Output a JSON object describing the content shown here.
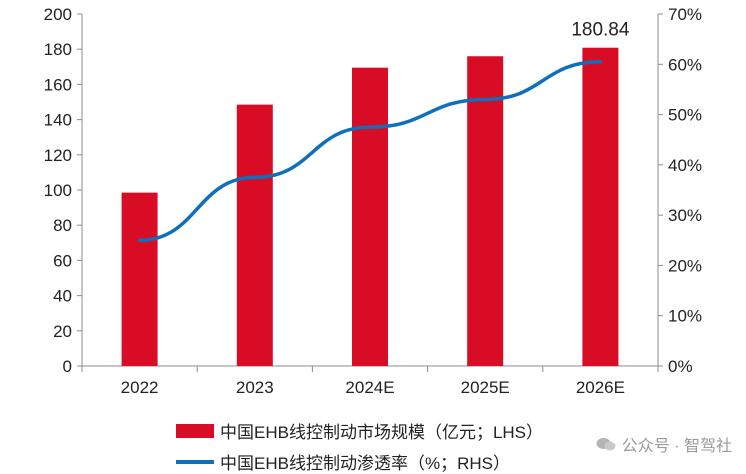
{
  "chart_data": {
    "type": "bar+line",
    "categories": [
      "2022",
      "2023",
      "2024E",
      "2025E",
      "2026E"
    ],
    "series": [
      {
        "name": "中国EHB线控制动市场规模（亿元；LHS）",
        "type": "bar",
        "axis": "left",
        "color": "#d80c24",
        "values": [
          98.5,
          148.5,
          169.5,
          176,
          180.84
        ]
      },
      {
        "name": "中国EHB线控制动渗透率（%；RHS）",
        "type": "line",
        "axis": "right",
        "color": "#0f6fba",
        "values": [
          25,
          37.5,
          47.5,
          53,
          60.5
        ]
      }
    ],
    "data_labels": [
      {
        "category": "2026E",
        "text": "180.84"
      }
    ],
    "y_left": {
      "min": 0,
      "max": 200,
      "ticks": [
        "0",
        "20",
        "40",
        "60",
        "80",
        "100",
        "120",
        "140",
        "160",
        "180",
        "200"
      ]
    },
    "y_right": {
      "min": 0,
      "max": 70,
      "ticks": [
        "0%",
        "10%",
        "20%",
        "30%",
        "40%",
        "50%",
        "60%",
        "70%"
      ]
    },
    "grid": false,
    "legend_position": "bottom"
  },
  "legend": {
    "bar_label": "中国EHB线控制动市场规模（亿元；LHS）",
    "line_label": "中国EHB线控制动渗透率（%；RHS）"
  },
  "watermark": {
    "text": "公众号 · 智驾社"
  }
}
